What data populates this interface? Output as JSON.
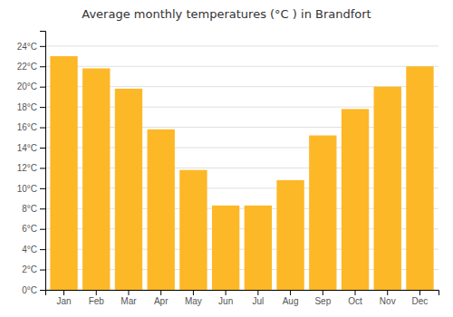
{
  "chart_data": {
    "type": "bar",
    "title": "Average monthly temperatures (°C ) in Brandfort",
    "categories": [
      "Jan",
      "Feb",
      "Mar",
      "Apr",
      "May",
      "Jun",
      "Jul",
      "Aug",
      "Sep",
      "Oct",
      "Nov",
      "Dec"
    ],
    "values": [
      23,
      21.8,
      19.8,
      15.8,
      11.8,
      8.3,
      8.3,
      10.8,
      15.2,
      17.8,
      20.0,
      22.0
    ],
    "color": "#FDB827",
    "ylim": [
      0,
      25.5
    ],
    "yticks": [
      {
        "value": 0,
        "label": "0°C"
      },
      {
        "value": 2,
        "label": "2°C"
      },
      {
        "value": 4,
        "label": "4°C"
      },
      {
        "value": 6,
        "label": "6°C"
      },
      {
        "value": 8,
        "label": "8°C"
      },
      {
        "value": 10,
        "label": "10°C"
      },
      {
        "value": 12,
        "label": "12°C"
      },
      {
        "value": 14,
        "label": "14°C"
      },
      {
        "value": 16,
        "label": "16°C"
      },
      {
        "value": 18,
        "label": "18°C"
      },
      {
        "value": 20,
        "label": "20°C"
      },
      {
        "value": 22,
        "label": "22°C"
      },
      {
        "value": 24,
        "label": "24°C"
      }
    ],
    "grid": true
  }
}
